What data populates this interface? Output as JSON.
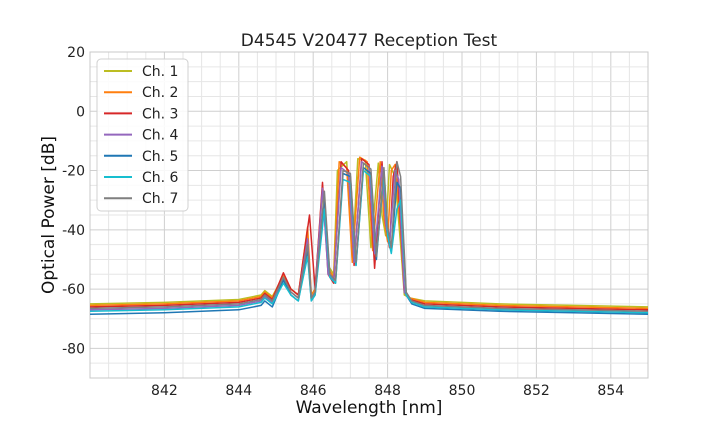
{
  "chart_data": {
    "type": "line",
    "title": "D4545 V20477 Reception Test",
    "xlabel": "Wavelength [nm]",
    "ylabel": "Optical Power [dB]",
    "xlim": [
      840,
      855
    ],
    "ylim": [
      -90,
      20
    ],
    "xticks": [
      842,
      844,
      846,
      848,
      850,
      852,
      854
    ],
    "yticks": [
      20,
      0,
      -20,
      -40,
      -60,
      -80
    ],
    "grid": true,
    "legend_position": "top-left",
    "series": [
      {
        "name": "Ch. 1",
        "color": "#bcbd22",
        "x": [
          840,
          842,
          844,
          844.6,
          844.7,
          844.9,
          845.2,
          845.4,
          845.6,
          845.85,
          845.95,
          846.05,
          846.25,
          846.4,
          846.55,
          846.65,
          846.9,
          847.05,
          847.2,
          847.4,
          847.55,
          847.75,
          847.85,
          847.95,
          848.05,
          848.2,
          848.35,
          848.45,
          848.6,
          849,
          851,
          853,
          855
        ],
        "y": [
          -65,
          -64.5,
          -63.5,
          -62,
          -60.5,
          -62.5,
          -55.5,
          -60,
          -62,
          -42,
          -62,
          -60,
          -27,
          -52,
          -55,
          -20,
          -17,
          -50,
          -16,
          -16.5,
          -46,
          -17.5,
          -35,
          -42,
          -18,
          -22,
          -45,
          -62,
          -63,
          -64,
          -65,
          -65.5,
          -66
        ]
      },
      {
        "name": "Ch. 2",
        "color": "#ff7f0e",
        "x": [
          840,
          842,
          844,
          844.6,
          844.7,
          844.9,
          845.2,
          845.4,
          845.6,
          845.85,
          845.95,
          846.05,
          846.25,
          846.4,
          846.55,
          846.7,
          846.9,
          847.05,
          847.25,
          847.45,
          847.6,
          847.8,
          847.9,
          848,
          848.1,
          848.2,
          848.35,
          848.45,
          848.6,
          849,
          851,
          853,
          855
        ],
        "y": [
          -65.5,
          -65,
          -64,
          -62.5,
          -61,
          -63,
          -55,
          -60,
          -62,
          -39,
          -62,
          -60,
          -25,
          -53,
          -56,
          -17,
          -19,
          -51,
          -15.5,
          -17,
          -47,
          -17,
          -36,
          -44,
          -20,
          -18,
          -40,
          -61,
          -63,
          -64.5,
          -65.5,
          -66,
          -66.5
        ]
      },
      {
        "name": "Ch. 3",
        "color": "#d62728",
        "x": [
          840,
          842,
          844,
          844.6,
          844.7,
          844.9,
          845.2,
          845.4,
          845.6,
          845.9,
          846.05,
          846.25,
          846.4,
          846.55,
          846.75,
          846.95,
          847.1,
          847.3,
          847.5,
          847.65,
          847.85,
          847.95,
          848.05,
          848.15,
          848.25,
          848.35,
          848.45,
          848.6,
          849,
          851,
          853,
          855
        ],
        "y": [
          -66,
          -65.5,
          -64.5,
          -63,
          -61.5,
          -63.5,
          -54.5,
          -60,
          -62,
          -35,
          -60,
          -24,
          -55,
          -58,
          -17,
          -20,
          -52,
          -16,
          -18,
          -53,
          -17,
          -38,
          -46,
          -22,
          -17,
          -38,
          -61,
          -63.5,
          -65,
          -66,
          -66.5,
          -67
        ]
      },
      {
        "name": "Ch. 4",
        "color": "#9467bd",
        "x": [
          840,
          842,
          844,
          844.6,
          844.7,
          844.9,
          845.2,
          845.4,
          845.6,
          845.85,
          845.95,
          846.05,
          846.25,
          846.4,
          846.55,
          846.75,
          846.95,
          847.1,
          847.3,
          847.5,
          847.65,
          847.85,
          847.95,
          848.05,
          848.2,
          848.3,
          848.45,
          848.6,
          849,
          851,
          853,
          855
        ],
        "y": [
          -67,
          -66.5,
          -65.5,
          -64,
          -62.5,
          -64.5,
          -56.5,
          -61,
          -63,
          -43,
          -63,
          -61,
          -26,
          -55,
          -57,
          -19,
          -21,
          -51,
          -17,
          -19,
          -48,
          -18.5,
          -38,
          -45,
          -20,
          -23,
          -61,
          -64,
          -66,
          -67,
          -67.5,
          -68
        ]
      },
      {
        "name": "Ch. 5",
        "color": "#1f77b4",
        "x": [
          840,
          842,
          844,
          844.6,
          844.7,
          844.9,
          845.2,
          845.4,
          845.6,
          845.85,
          845.95,
          846.05,
          846.3,
          846.45,
          846.6,
          846.8,
          847,
          847.15,
          847.35,
          847.55,
          847.7,
          847.9,
          848,
          848.1,
          848.25,
          848.35,
          848.5,
          848.65,
          849,
          851,
          853,
          855
        ],
        "y": [
          -68.5,
          -68,
          -67,
          -65.5,
          -64,
          -66,
          -57,
          -62,
          -64,
          -47,
          -64,
          -62,
          -29,
          -56,
          -58,
          -21,
          -22,
          -52,
          -19,
          -21,
          -50,
          -20,
          -40,
          -47,
          -24,
          -26,
          -62,
          -65,
          -66.5,
          -67.5,
          -68,
          -68.5
        ]
      },
      {
        "name": "Ch. 6",
        "color": "#17becf",
        "x": [
          840,
          842,
          844,
          844.6,
          844.7,
          844.9,
          845.2,
          845.4,
          845.6,
          845.85,
          845.95,
          846.05,
          846.3,
          846.45,
          846.6,
          846.8,
          847,
          847.15,
          847.35,
          847.55,
          847.7,
          847.9,
          848,
          848.1,
          848.25,
          848.35,
          848.5,
          848.65,
          849,
          851,
          853,
          855
        ],
        "y": [
          -67.5,
          -67,
          -66,
          -64.5,
          -63,
          -65,
          -58,
          -62,
          -64,
          -49,
          -64,
          -62,
          -33,
          -56,
          -58,
          -23,
          -24,
          -52,
          -20,
          -22,
          -49,
          -21,
          -42,
          -48,
          -33,
          -30,
          -62,
          -64.5,
          -66,
          -67,
          -67.5,
          -68
        ]
      },
      {
        "name": "Ch. 7",
        "color": "#7f7f7f",
        "x": [
          840,
          842,
          844,
          844.6,
          844.7,
          844.9,
          845.2,
          845.4,
          845.6,
          845.85,
          845.95,
          846.05,
          846.3,
          846.45,
          846.6,
          846.8,
          847,
          847.15,
          847.35,
          847.55,
          847.7,
          847.9,
          848,
          848.1,
          848.25,
          848.35,
          848.5,
          848.65,
          849,
          851,
          853,
          855
        ],
        "y": [
          -66.5,
          -66,
          -65,
          -63.5,
          -62,
          -64,
          -56,
          -61,
          -63,
          -45,
          -63,
          -61,
          -27,
          -55,
          -57,
          -20,
          -21,
          -51,
          -17.5,
          -19.5,
          -49,
          -19,
          -39,
          -46,
          -17,
          -22,
          -61,
          -64,
          -65.5,
          -66.5,
          -67,
          -67.5
        ]
      }
    ]
  }
}
